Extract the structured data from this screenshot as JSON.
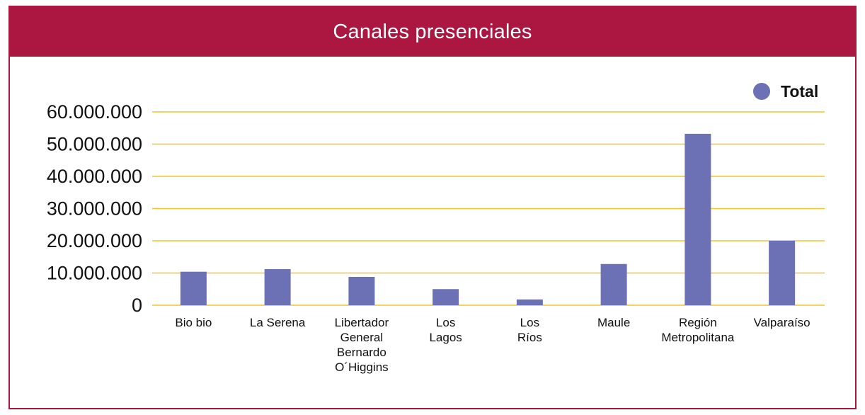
{
  "title": "Canales presenciales",
  "colors": {
    "header": "#ac1742",
    "bar": "#6c70b5",
    "grid": "#f2c433",
    "text": "#111111"
  },
  "chart_data": {
    "type": "bar",
    "title": "Canales presenciales",
    "xlabel": "",
    "ylabel": "",
    "ylim": [
      0,
      60000000
    ],
    "yticks": [
      0,
      10000000,
      20000000,
      30000000,
      40000000,
      50000000,
      60000000
    ],
    "ytick_labels": [
      "0",
      "10.000.000",
      "20.000.000",
      "30.000.000",
      "40.000.000",
      "50.000.000",
      "60.000.000"
    ],
    "categories": [
      [
        "Bio bio"
      ],
      [
        "La Serena"
      ],
      [
        "Libertador",
        "General",
        "Bernardo",
        "O´Higgins"
      ],
      [
        "Los",
        "Lagos"
      ],
      [
        "Los",
        "Ríos"
      ],
      [
        "Maule"
      ],
      [
        "Región",
        "Metropolitana"
      ],
      [
        "Valparaíso"
      ]
    ],
    "series": [
      {
        "name": "Total",
        "values": [
          10400000,
          11200000,
          8800000,
          5000000,
          1800000,
          12800000,
          53200000,
          20000000
        ]
      }
    ],
    "legend": {
      "position": "top-right",
      "entries": [
        "Total"
      ]
    },
    "grid": true
  }
}
